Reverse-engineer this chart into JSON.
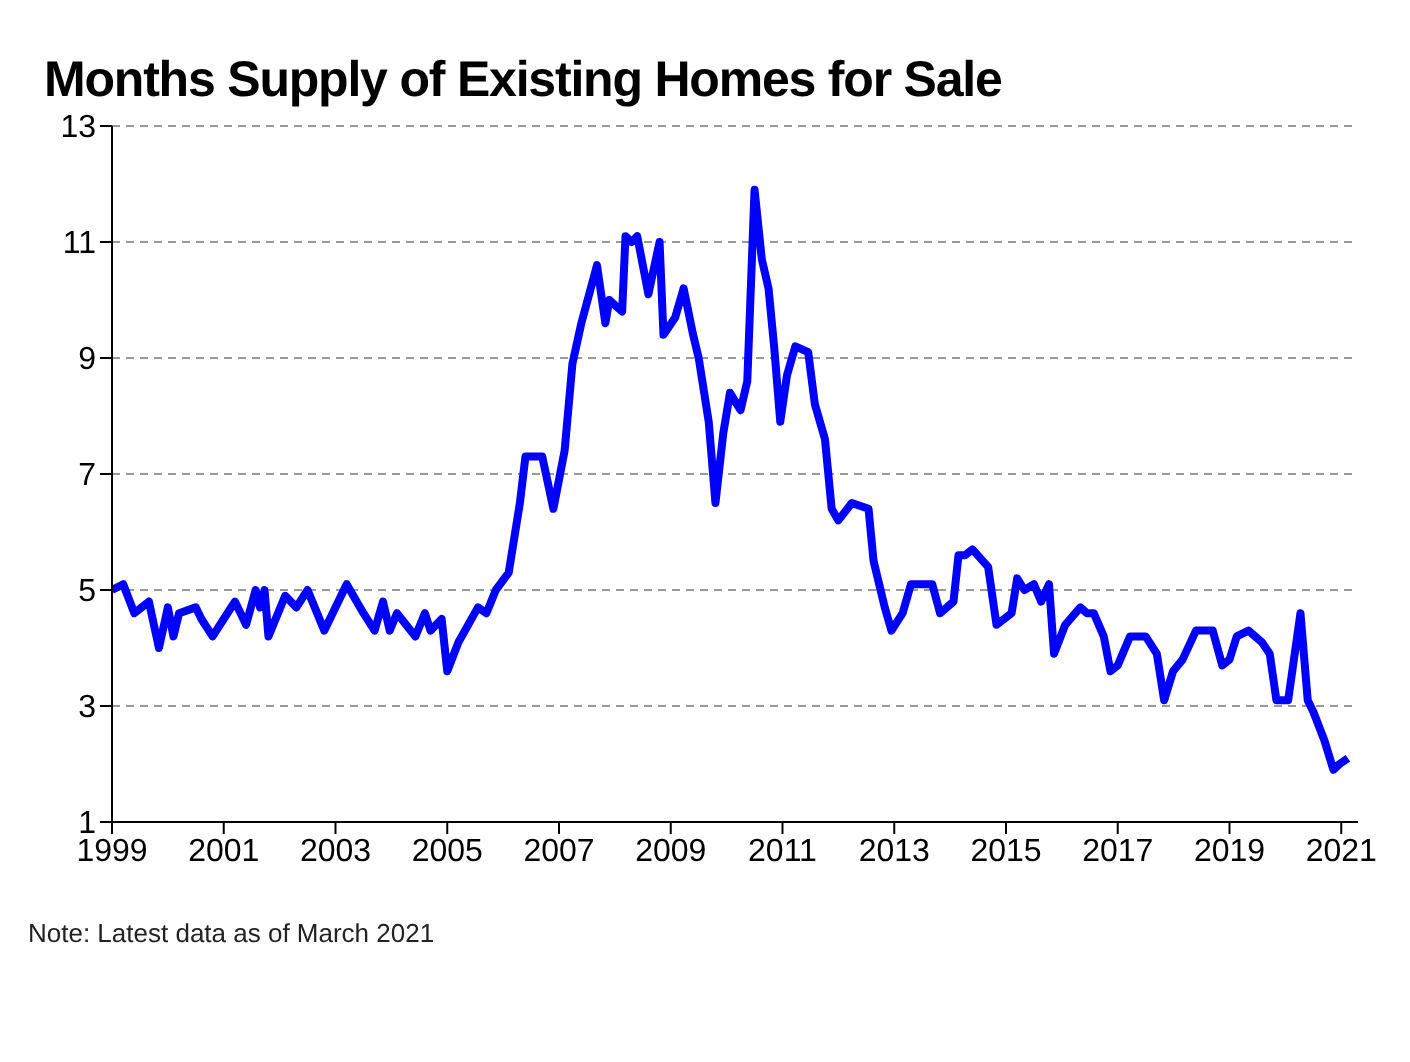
{
  "chart_data": {
    "type": "line",
    "title": "Months Supply of Existing Homes for Sale",
    "annotations": [
      "Note: Latest data as of March 2021"
    ],
    "grid": "y",
    "line_style": "solid",
    "marker": "none",
    "xlim": [
      1999,
      2021.3
    ],
    "xticks": [
      1999,
      2001,
      2003,
      2005,
      2007,
      2009,
      2011,
      2013,
      2015,
      2017,
      2019,
      2021
    ],
    "ylim": [
      1,
      13
    ],
    "yticks": [
      1,
      3,
      5,
      7,
      9,
      11,
      13
    ],
    "series": [
      {
        "color": "#0000ff",
        "x": [
          1999,
          1999.2,
          1999.4,
          1999.66,
          1999.84,
          2000,
          2000.1,
          2000.2,
          2000.5,
          2000.6,
          2000.8,
          2001,
          2001.2,
          2001.4,
          2001.57,
          2001.65,
          2001.73,
          2001.8,
          2002.1,
          2002.3,
          2002.5,
          2002.8,
          2003.2,
          2003.5,
          2003.7,
          2003.85,
          2003.97,
          2004.1,
          2004.43,
          2004.6,
          2004.7,
          2004.9,
          2005,
          2005.2,
          2005.55,
          2005.7,
          2005.87,
          2006.1,
          2006.3,
          2006.4,
          2006.7,
          2006.9,
          2007.1,
          2007.24,
          2007.4,
          2007.68,
          2007.83,
          2007.9,
          2008.13,
          2008.19,
          2008.3,
          2008.4,
          2008.6,
          2008.8,
          2008.87,
          2009.08,
          2009.23,
          2009.4,
          2009.5,
          2009.68,
          2009.8,
          2009.94,
          2010.06,
          2010.25,
          2010.37,
          2010.5,
          2010.63,
          2010.75,
          2010.85,
          2010.96,
          2011.08,
          2011.23,
          2011.46,
          2011.58,
          2011.76,
          2011.88,
          2012,
          2012.24,
          2012.54,
          2012.63,
          2012.83,
          2012.95,
          2013.15,
          2013.3,
          2013.68,
          2013.82,
          2014.06,
          2014.15,
          2014.27,
          2014.4,
          2014.68,
          2014.83,
          2015.1,
          2015.2,
          2015.33,
          2015.5,
          2015.63,
          2015.77,
          2015.86,
          2016.06,
          2016.33,
          2016.45,
          2016.57,
          2016.75,
          2016.87,
          2017,
          2017.22,
          2017.5,
          2017.7,
          2017.83,
          2017.99,
          2018.16,
          2018.4,
          2018.7,
          2018.87,
          2019,
          2019.13,
          2019.34,
          2019.58,
          2019.72,
          2019.84,
          2020.05,
          2020.27,
          2020.4,
          2020.5,
          2020.7,
          2020.86,
          2020.97,
          2021.12
        ],
        "values": [
          5,
          5.1,
          4.6,
          4.8,
          4,
          4.7,
          4.2,
          4.6,
          4.7,
          4.5,
          4.2,
          4.5,
          4.8,
          4.4,
          5,
          4.7,
          5,
          4.2,
          4.9,
          4.7,
          5,
          4.3,
          5.1,
          4.6,
          4.3,
          4.8,
          4.3,
          4.6,
          4.2,
          4.6,
          4.3,
          4.5,
          3.6,
          4.1,
          4.7,
          4.6,
          5,
          5.3,
          6.5,
          7.3,
          7.3,
          6.4,
          7.4,
          8.9,
          9.6,
          10.6,
          9.6,
          10,
          9.8,
          11.1,
          11,
          11.1,
          10.1,
          11,
          9.4,
          9.7,
          10.2,
          9.4,
          9,
          7.9,
          6.5,
          7.7,
          8.4,
          8.1,
          8.6,
          11.9,
          10.7,
          10.2,
          9.2,
          7.9,
          8.7,
          9.2,
          9.1,
          8.2,
          7.6,
          6.4,
          6.2,
          6.5,
          6.4,
          5.5,
          4.7,
          4.3,
          4.6,
          5.1,
          5.1,
          4.6,
          4.8,
          5.6,
          5.6,
          5.7,
          5.4,
          4.4,
          4.6,
          5.2,
          5,
          5.1,
          4.8,
          5.1,
          3.9,
          4.4,
          4.7,
          4.6,
          4.6,
          4.2,
          3.6,
          3.7,
          4.2,
          4.2,
          3.9,
          3.1,
          3.6,
          3.8,
          4.3,
          4.3,
          3.7,
          3.8,
          4.2,
          4.3,
          4.1,
          3.9,
          3.1,
          3.1,
          4.6,
          3.1,
          2.9,
          2.4,
          1.9,
          2,
          2.1
        ]
      }
    ]
  }
}
